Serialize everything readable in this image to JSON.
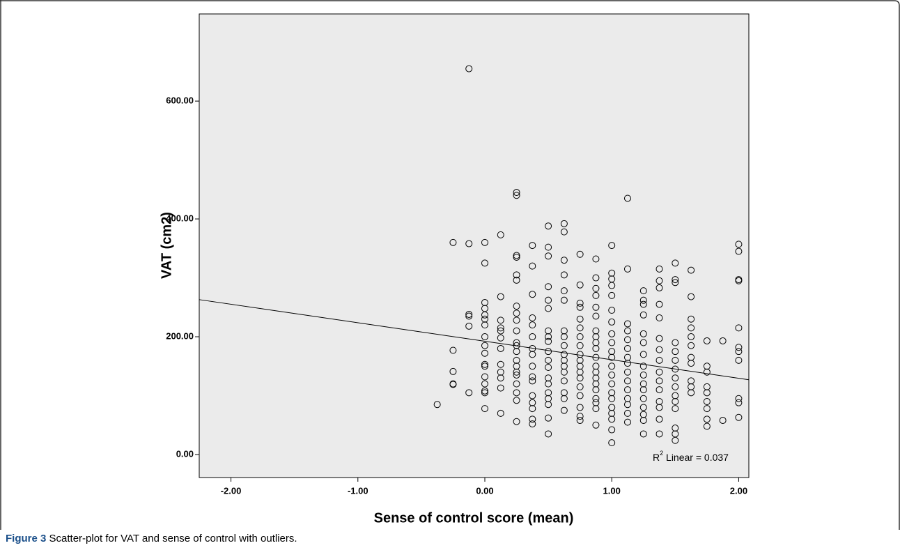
{
  "chart_data": {
    "type": "scatter",
    "x_label": "Sense of control score (mean)",
    "y_label": "VAT (cm2)",
    "xlim": [
      -2.25,
      2.08
    ],
    "ylim": [
      -39,
      748
    ],
    "xticks": [
      {
        "value": -2,
        "label": "-2.00"
      },
      {
        "value": -1,
        "label": "-1.00"
      },
      {
        "value": 0,
        "label": "0.00"
      },
      {
        "value": 1,
        "label": "1.00"
      },
      {
        "value": 2,
        "label": "2.00"
      }
    ],
    "yticks": [
      {
        "value": 0,
        "label": "0.00"
      },
      {
        "value": 200,
        "label": "200.00"
      },
      {
        "value": 400,
        "label": "400.00"
      },
      {
        "value": 600,
        "label": "600.00"
      }
    ],
    "color": "#000000",
    "background": "#ebebeb",
    "points": [
      [
        -0.375,
        85
      ],
      [
        -0.25,
        360
      ],
      [
        -0.25,
        177
      ],
      [
        -0.25,
        141
      ],
      [
        -0.25,
        120
      ],
      [
        -0.25,
        119
      ],
      [
        -0.125,
        655
      ],
      [
        -0.125,
        358
      ],
      [
        -0.125,
        238
      ],
      [
        -0.125,
        235
      ],
      [
        -0.125,
        218
      ],
      [
        -0.125,
        105
      ],
      [
        0,
        360
      ],
      [
        0,
        325
      ],
      [
        0,
        258
      ],
      [
        0,
        248
      ],
      [
        0,
        237
      ],
      [
        0,
        230
      ],
      [
        0,
        220
      ],
      [
        0,
        200
      ],
      [
        0,
        185
      ],
      [
        0,
        172
      ],
      [
        0,
        153
      ],
      [
        0,
        150
      ],
      [
        0,
        132
      ],
      [
        0,
        120
      ],
      [
        0,
        108
      ],
      [
        0,
        105
      ],
      [
        0,
        78
      ],
      [
        0.125,
        373
      ],
      [
        0.125,
        268
      ],
      [
        0.125,
        228
      ],
      [
        0.125,
        215
      ],
      [
        0.125,
        210
      ],
      [
        0.125,
        198
      ],
      [
        0.125,
        180
      ],
      [
        0.125,
        153
      ],
      [
        0.125,
        140
      ],
      [
        0.125,
        130
      ],
      [
        0.125,
        113
      ],
      [
        0.125,
        70
      ],
      [
        0.25,
        445
      ],
      [
        0.25,
        440
      ],
      [
        0.25,
        338
      ],
      [
        0.25,
        335
      ],
      [
        0.25,
        305
      ],
      [
        0.25,
        296
      ],
      [
        0.25,
        252
      ],
      [
        0.25,
        240
      ],
      [
        0.25,
        228
      ],
      [
        0.25,
        210
      ],
      [
        0.25,
        190
      ],
      [
        0.25,
        185
      ],
      [
        0.25,
        175
      ],
      [
        0.25,
        160
      ],
      [
        0.25,
        150
      ],
      [
        0.25,
        140
      ],
      [
        0.25,
        135
      ],
      [
        0.25,
        120
      ],
      [
        0.25,
        105
      ],
      [
        0.25,
        92
      ],
      [
        0.25,
        56
      ],
      [
        0.375,
        355
      ],
      [
        0.375,
        320
      ],
      [
        0.375,
        272
      ],
      [
        0.375,
        232
      ],
      [
        0.375,
        220
      ],
      [
        0.375,
        200
      ],
      [
        0.375,
        180
      ],
      [
        0.375,
        170
      ],
      [
        0.375,
        150
      ],
      [
        0.375,
        132
      ],
      [
        0.375,
        125
      ],
      [
        0.375,
        100
      ],
      [
        0.375,
        88
      ],
      [
        0.375,
        78
      ],
      [
        0.375,
        60
      ],
      [
        0.375,
        52
      ],
      [
        0.5,
        388
      ],
      [
        0.5,
        352
      ],
      [
        0.5,
        337
      ],
      [
        0.5,
        285
      ],
      [
        0.5,
        262
      ],
      [
        0.5,
        248
      ],
      [
        0.5,
        210
      ],
      [
        0.5,
        200
      ],
      [
        0.5,
        192
      ],
      [
        0.5,
        175
      ],
      [
        0.5,
        160
      ],
      [
        0.5,
        148
      ],
      [
        0.5,
        130
      ],
      [
        0.5,
        120
      ],
      [
        0.5,
        105
      ],
      [
        0.5,
        95
      ],
      [
        0.5,
        85
      ],
      [
        0.5,
        62
      ],
      [
        0.5,
        35
      ],
      [
        0.625,
        392
      ],
      [
        0.625,
        378
      ],
      [
        0.625,
        330
      ],
      [
        0.625,
        305
      ],
      [
        0.625,
        278
      ],
      [
        0.625,
        262
      ],
      [
        0.625,
        210
      ],
      [
        0.625,
        200
      ],
      [
        0.625,
        185
      ],
      [
        0.625,
        170
      ],
      [
        0.625,
        160
      ],
      [
        0.625,
        150
      ],
      [
        0.625,
        140
      ],
      [
        0.625,
        125
      ],
      [
        0.625,
        105
      ],
      [
        0.625,
        95
      ],
      [
        0.625,
        75
      ],
      [
        0.75,
        340
      ],
      [
        0.75,
        288
      ],
      [
        0.75,
        257
      ],
      [
        0.75,
        250
      ],
      [
        0.75,
        230
      ],
      [
        0.75,
        215
      ],
      [
        0.75,
        200
      ],
      [
        0.75,
        185
      ],
      [
        0.75,
        170
      ],
      [
        0.75,
        160
      ],
      [
        0.75,
        150
      ],
      [
        0.75,
        140
      ],
      [
        0.75,
        130
      ],
      [
        0.75,
        115
      ],
      [
        0.75,
        100
      ],
      [
        0.75,
        80
      ],
      [
        0.75,
        65
      ],
      [
        0.75,
        58
      ],
      [
        0.875,
        332
      ],
      [
        0.875,
        300
      ],
      [
        0.875,
        282
      ],
      [
        0.875,
        270
      ],
      [
        0.875,
        250
      ],
      [
        0.875,
        235
      ],
      [
        0.875,
        210
      ],
      [
        0.875,
        200
      ],
      [
        0.875,
        190
      ],
      [
        0.875,
        180
      ],
      [
        0.875,
        165
      ],
      [
        0.875,
        150
      ],
      [
        0.875,
        140
      ],
      [
        0.875,
        130
      ],
      [
        0.875,
        120
      ],
      [
        0.875,
        110
      ],
      [
        0.875,
        95
      ],
      [
        0.875,
        88
      ],
      [
        0.875,
        78
      ],
      [
        0.875,
        50
      ],
      [
        1,
        355
      ],
      [
        1,
        308
      ],
      [
        1,
        298
      ],
      [
        1,
        287
      ],
      [
        1,
        270
      ],
      [
        1,
        245
      ],
      [
        1,
        225
      ],
      [
        1,
        205
      ],
      [
        1,
        190
      ],
      [
        1,
        175
      ],
      [
        1,
        165
      ],
      [
        1,
        150
      ],
      [
        1,
        135
      ],
      [
        1,
        120
      ],
      [
        1,
        105
      ],
      [
        1,
        95
      ],
      [
        1,
        80
      ],
      [
        1,
        70
      ],
      [
        1,
        60
      ],
      [
        1,
        42
      ],
      [
        1,
        20
      ],
      [
        1.125,
        435
      ],
      [
        1.125,
        315
      ],
      [
        1.125,
        222
      ],
      [
        1.125,
        210
      ],
      [
        1.125,
        195
      ],
      [
        1.125,
        180
      ],
      [
        1.125,
        165
      ],
      [
        1.125,
        155
      ],
      [
        1.125,
        140
      ],
      [
        1.125,
        125
      ],
      [
        1.125,
        110
      ],
      [
        1.125,
        95
      ],
      [
        1.125,
        85
      ],
      [
        1.125,
        70
      ],
      [
        1.125,
        55
      ],
      [
        1.25,
        278
      ],
      [
        1.25,
        262
      ],
      [
        1.25,
        255
      ],
      [
        1.25,
        237
      ],
      [
        1.25,
        205
      ],
      [
        1.25,
        190
      ],
      [
        1.25,
        170
      ],
      [
        1.25,
        150
      ],
      [
        1.25,
        135
      ],
      [
        1.25,
        120
      ],
      [
        1.25,
        110
      ],
      [
        1.25,
        95
      ],
      [
        1.25,
        80
      ],
      [
        1.25,
        68
      ],
      [
        1.25,
        58
      ],
      [
        1.25,
        35
      ],
      [
        1.375,
        315
      ],
      [
        1.375,
        295
      ],
      [
        1.375,
        283
      ],
      [
        1.375,
        255
      ],
      [
        1.375,
        232
      ],
      [
        1.375,
        197
      ],
      [
        1.375,
        178
      ],
      [
        1.375,
        160
      ],
      [
        1.375,
        140
      ],
      [
        1.375,
        125
      ],
      [
        1.375,
        110
      ],
      [
        1.375,
        90
      ],
      [
        1.375,
        80
      ],
      [
        1.375,
        60
      ],
      [
        1.375,
        35
      ],
      [
        1.5,
        325
      ],
      [
        1.5,
        297
      ],
      [
        1.5,
        292
      ],
      [
        1.5,
        190
      ],
      [
        1.5,
        175
      ],
      [
        1.5,
        160
      ],
      [
        1.5,
        145
      ],
      [
        1.5,
        130
      ],
      [
        1.5,
        115
      ],
      [
        1.5,
        100
      ],
      [
        1.5,
        90
      ],
      [
        1.5,
        78
      ],
      [
        1.5,
        45
      ],
      [
        1.5,
        35
      ],
      [
        1.5,
        24
      ],
      [
        1.625,
        313
      ],
      [
        1.625,
        268
      ],
      [
        1.625,
        230
      ],
      [
        1.625,
        215
      ],
      [
        1.625,
        200
      ],
      [
        1.625,
        185
      ],
      [
        1.625,
        165
      ],
      [
        1.625,
        155
      ],
      [
        1.625,
        125
      ],
      [
        1.625,
        115
      ],
      [
        1.625,
        105
      ],
      [
        1.75,
        193
      ],
      [
        1.75,
        150
      ],
      [
        1.75,
        140
      ],
      [
        1.75,
        115
      ],
      [
        1.75,
        105
      ],
      [
        1.75,
        90
      ],
      [
        1.75,
        78
      ],
      [
        1.75,
        60
      ],
      [
        1.75,
        48
      ],
      [
        1.875,
        193
      ],
      [
        1.875,
        58
      ],
      [
        2,
        357
      ],
      [
        2,
        345
      ],
      [
        2,
        297
      ],
      [
        2,
        295
      ],
      [
        2,
        215
      ],
      [
        2,
        182
      ],
      [
        2,
        175
      ],
      [
        2,
        160
      ],
      [
        2,
        95
      ],
      [
        2,
        88
      ],
      [
        2,
        63
      ]
    ],
    "fit_line": {
      "x": [
        -2.25,
        2.08
      ],
      "y": [
        263,
        127
      ]
    },
    "annotation": {
      "r": "R",
      "sup": "2",
      "text": " Linear = 0.037"
    }
  },
  "caption": {
    "label": "Figure 3",
    "text": " Scatter-plot for VAT and sense of control with outliers."
  }
}
